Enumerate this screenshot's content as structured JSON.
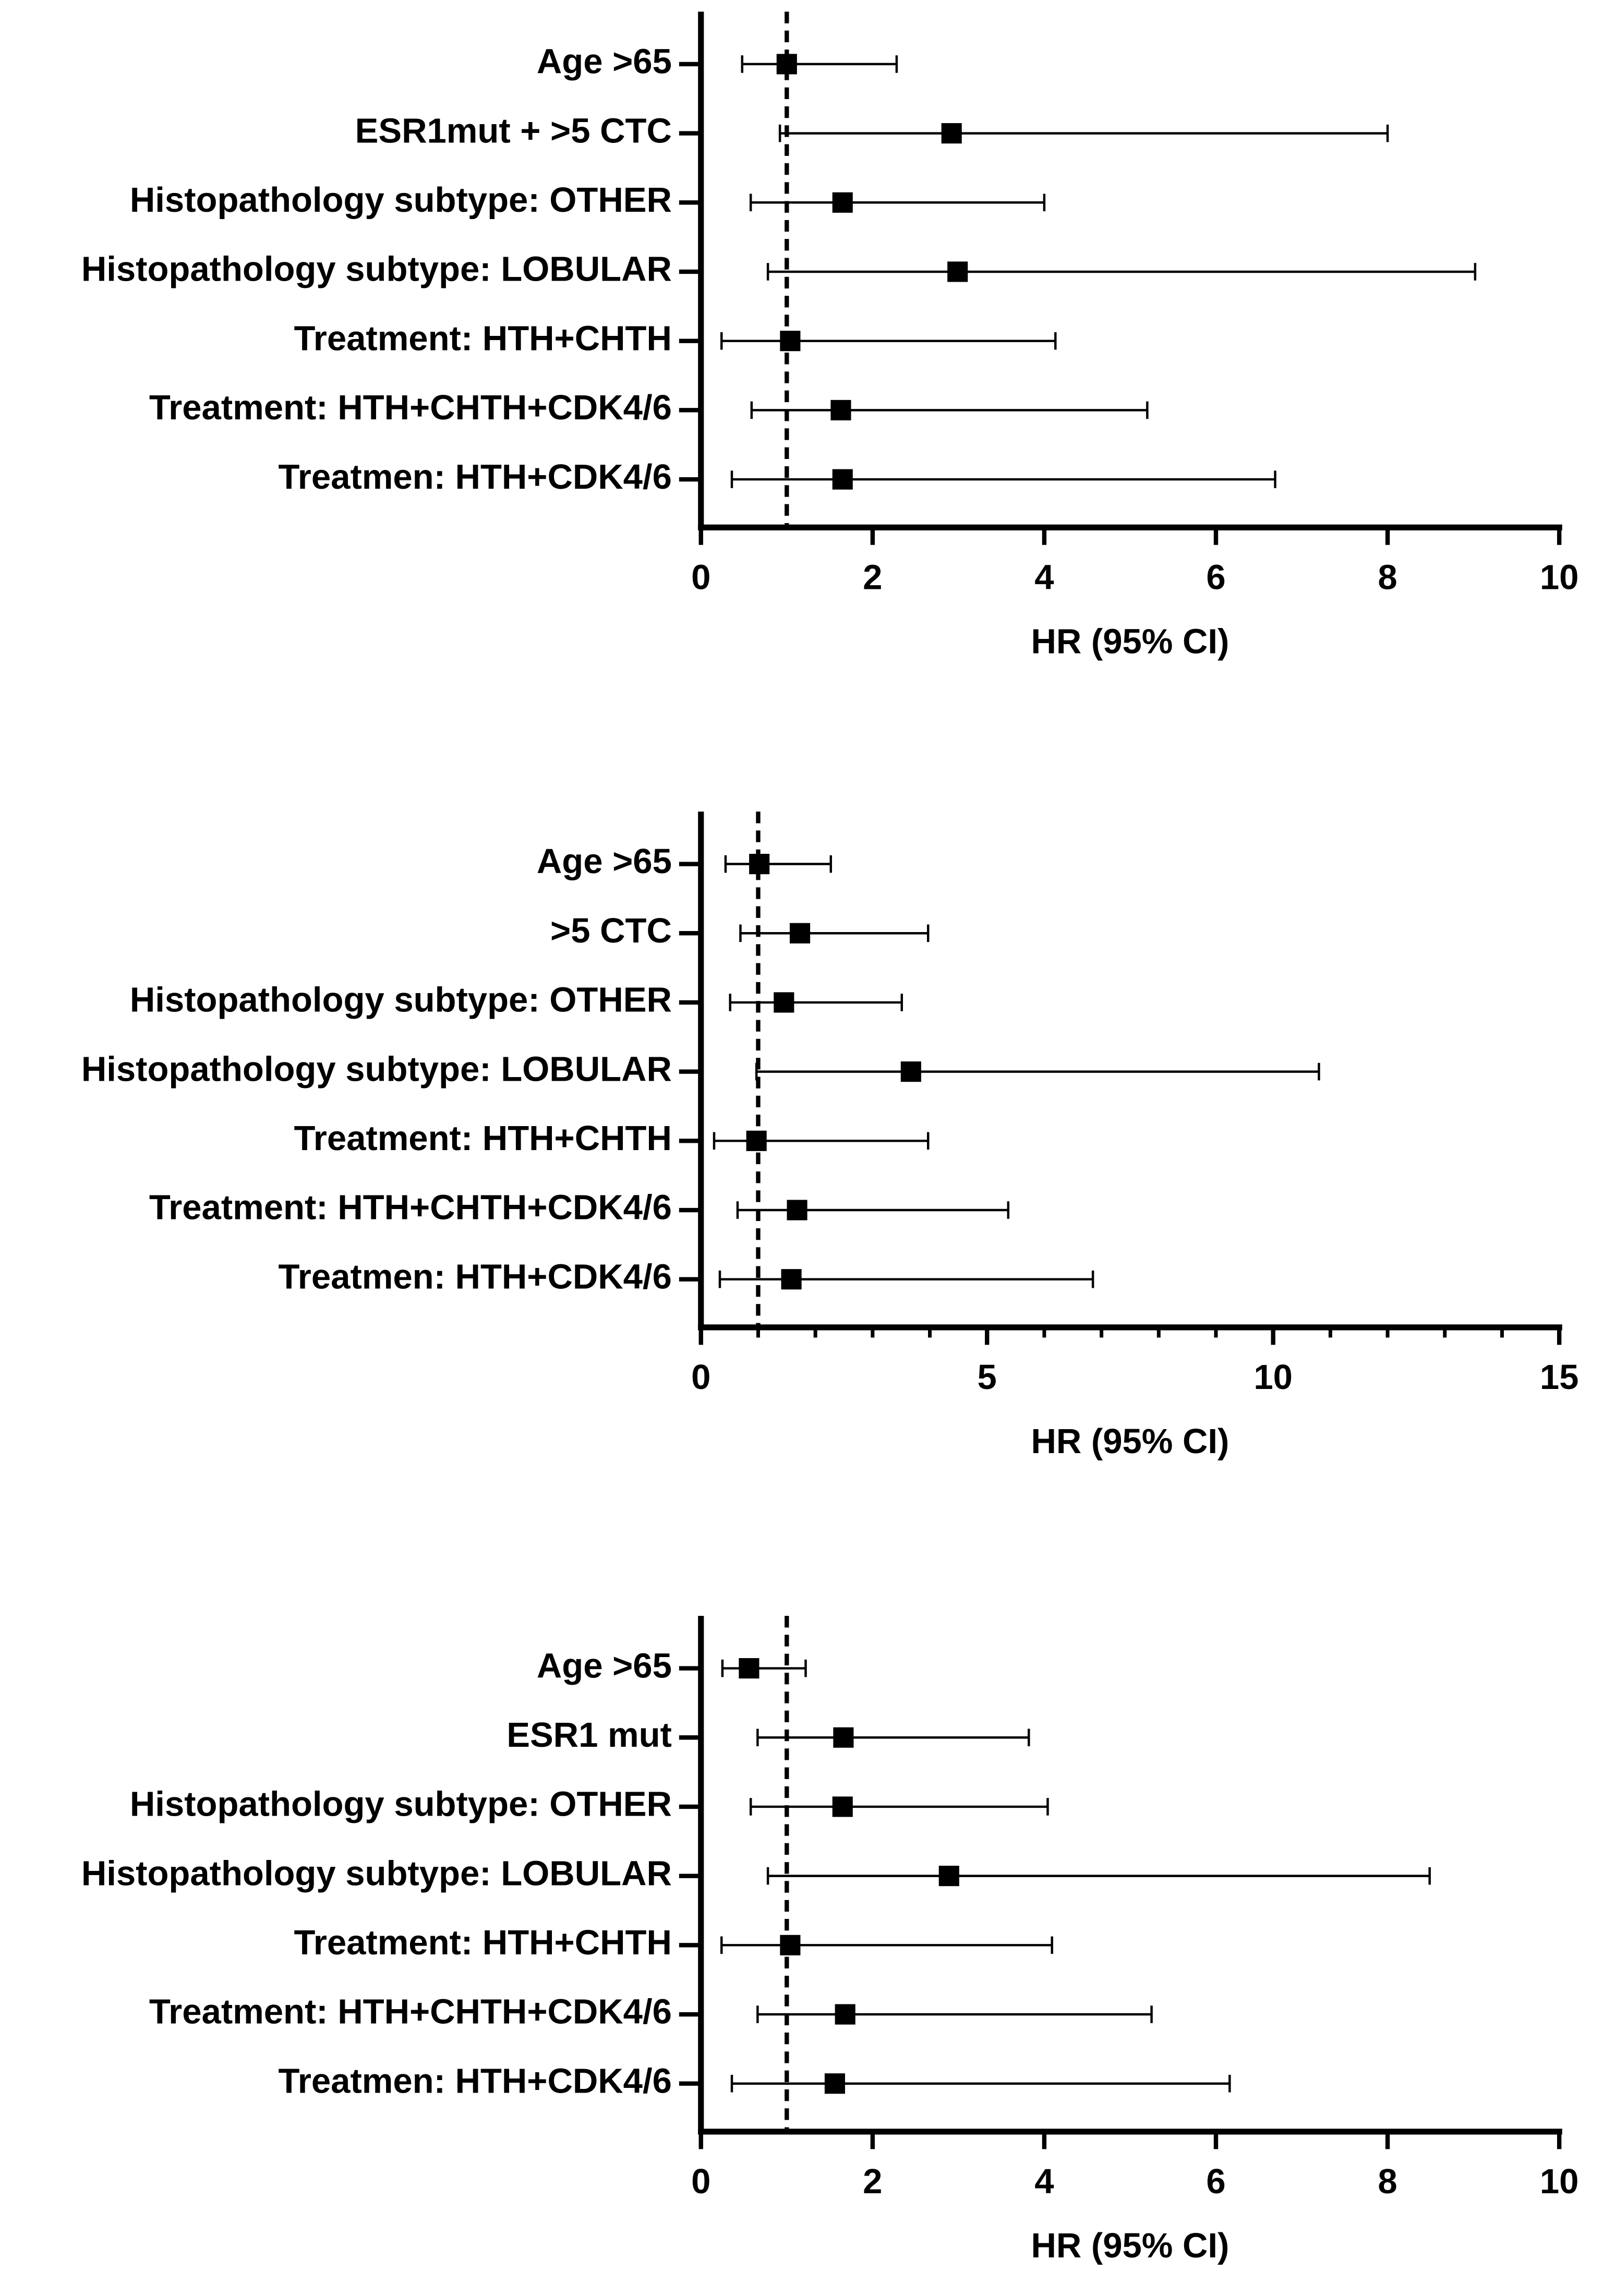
{
  "chart_data": [
    {
      "type": "forest",
      "xlabel": "HR (95% CI)",
      "categories": [
        "Age >65",
        "ESR1mut + >5 CTC",
        "Histopathology subtype: OTHER",
        "Histopathology subtype: LOBULAR",
        "Treatment: HTH+CHTH",
        "Treatment: HTH+CHTH+CDK4/6",
        "Treatmen: HTH+CDK4/6"
      ],
      "values": [
        1.0,
        2.92,
        1.65,
        2.99,
        1.04,
        1.63,
        1.65
      ],
      "lower": [
        0.48,
        0.92,
        0.58,
        0.78,
        0.24,
        0.59,
        0.36
      ],
      "upper": [
        2.28,
        8.0,
        4.0,
        9.02,
        4.13,
        5.2,
        6.69
      ],
      "reference": 1,
      "color": "#000000",
      "xlim": [
        0,
        10
      ],
      "xticks": [
        0,
        2,
        4,
        6,
        8,
        10
      ]
    },
    {
      "type": "forest",
      "xlabel": "HR (95% CI)",
      "categories": [
        "Age >65",
        ">5 CTC",
        "Histopathology subtype: OTHER",
        "Histopathology subtype: LOBULAR",
        "Treatment: HTH+CHTH",
        "Treatment: HTH+CHTH+CDK4/6",
        "Treatmen: HTH+CDK4/6"
      ],
      "values": [
        1.02,
        1.73,
        1.45,
        3.67,
        0.97,
        1.68,
        1.58
      ],
      "lower": [
        0.43,
        0.69,
        0.51,
        0.97,
        0.23,
        0.64,
        0.33
      ],
      "upper": [
        2.27,
        3.97,
        3.51,
        10.8,
        3.97,
        5.37,
        6.85
      ],
      "reference": 1,
      "color": "#000000",
      "xlim": [
        0,
        15
      ],
      "xticks": [
        0,
        5,
        10,
        15
      ],
      "xminorticks": [
        1,
        2,
        3,
        4,
        6,
        7,
        8,
        9,
        11,
        12,
        13,
        14
      ]
    },
    {
      "type": "forest",
      "xlabel": "HR (95% CI)",
      "categories": [
        "Age >65",
        "ESR1 mut",
        "Histopathology subtype: OTHER",
        "Histopathology subtype: LOBULAR",
        "Treatment: HTH+CHTH",
        "Treatment: HTH+CHTH+CDK4/6",
        "Treatmen: HTH+CDK4/6"
      ],
      "values": [
        0.56,
        1.66,
        1.65,
        2.89,
        1.04,
        1.68,
        1.56
      ],
      "lower": [
        0.25,
        0.66,
        0.58,
        0.78,
        0.24,
        0.66,
        0.36
      ],
      "upper": [
        1.22,
        3.82,
        4.04,
        8.49,
        4.09,
        5.25,
        6.16
      ],
      "reference": 1,
      "color": "#000000",
      "xlim": [
        0,
        10
      ],
      "xticks": [
        0,
        2,
        4,
        6,
        8,
        10
      ]
    }
  ]
}
